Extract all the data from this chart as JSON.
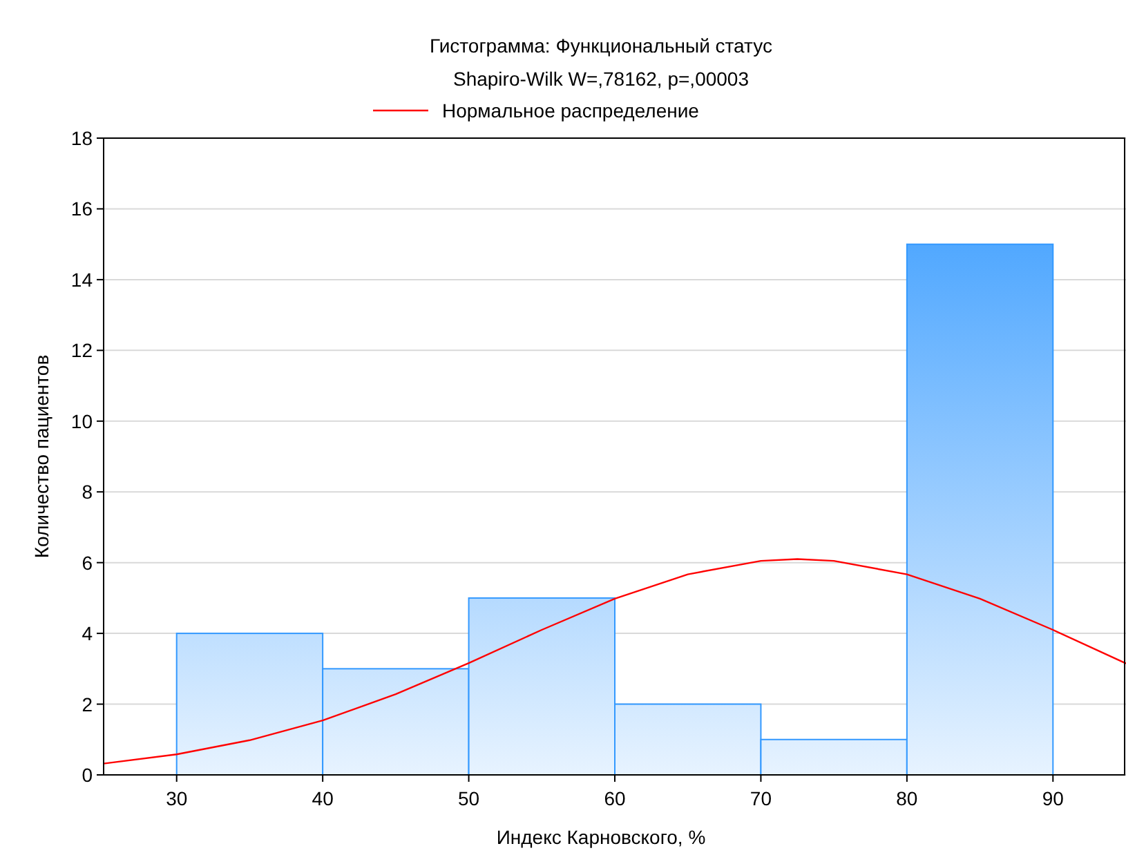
{
  "chart_data": {
    "type": "histogram",
    "title": "Гистограмма: Функциональный статус",
    "subtitle": "Shapiro-Wilk W=,78162, p=,00003",
    "xlabel": "Индекс Карновского, %",
    "ylabel": "Количество пациентов",
    "bins": [
      30,
      40,
      50,
      60,
      70,
      80,
      90
    ],
    "values": [
      4,
      3,
      5,
      2,
      1,
      15
    ],
    "color": "#3399ff",
    "series": [
      {
        "type": "line",
        "name": "Нормальное распределение",
        "color": "#ff0000",
        "x": [
          25,
          30,
          35,
          40,
          45,
          50,
          55,
          60,
          65,
          70,
          72.5,
          75,
          80,
          85,
          90,
          95
        ],
        "values": [
          0.32,
          0.58,
          0.98,
          1.54,
          2.28,
          3.16,
          4.1,
          4.98,
          5.67,
          6.05,
          6.1,
          6.05,
          5.67,
          4.98,
          4.1,
          3.15
        ]
      }
    ],
    "xlim": [
      25,
      95
    ],
    "ylim": [
      0,
      18
    ],
    "xticks": [
      30,
      40,
      50,
      60,
      70,
      80,
      90
    ],
    "yticks": [
      0,
      2,
      4,
      6,
      8,
      10,
      12,
      14,
      16,
      18
    ],
    "grid": "y",
    "legend": "top",
    "line_style": "solid",
    "marker": "none"
  }
}
